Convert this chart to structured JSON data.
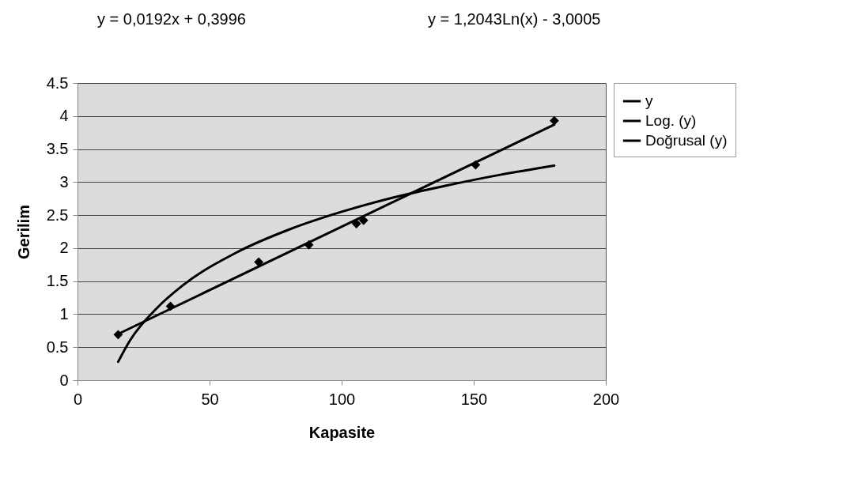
{
  "chart_data": {
    "type": "scatter",
    "xlabel": "Kapasite",
    "ylabel": "Gerilim",
    "annotations": [
      "y = 0,0192x + 0,3996",
      "y = 1,2043Ln(x) - 3,0005"
    ],
    "series": [
      {
        "name": "y",
        "type": "scatter",
        "marker": "diamond",
        "color": "#000000",
        "x": [
          15.4,
          35.2,
          68.6,
          87.6,
          105.6,
          108.3,
          150.7,
          180.5
        ],
        "values": [
          0.69,
          1.12,
          1.79,
          2.05,
          2.37,
          2.42,
          3.26,
          3.93
        ]
      },
      {
        "name": "Log. (y)",
        "type": "line",
        "marker": "none",
        "color": "#000000",
        "x": [
          15.4,
          20,
          30,
          40,
          60,
          80,
          100,
          120,
          140,
          160,
          180.5
        ],
        "values": [
          0.28,
          0.61,
          1.09,
          1.44,
          1.93,
          2.28,
          2.55,
          2.77,
          2.95,
          3.11,
          3.25
        ]
      },
      {
        "name": "Doğrusal (y)",
        "type": "line",
        "marker": "none",
        "color": "#000000",
        "x": [
          15.4,
          180.5
        ],
        "values": [
          0.7,
          3.87
        ]
      }
    ],
    "legend": "right",
    "grid": "y",
    "xlim": [
      0,
      200
    ],
    "xticks": [
      0,
      50,
      100,
      150,
      200
    ],
    "ylim": [
      0,
      4.5
    ],
    "yticks": [
      0,
      0.5,
      1,
      1.5,
      2,
      2.5,
      3,
      3.5,
      4,
      4.5
    ]
  }
}
